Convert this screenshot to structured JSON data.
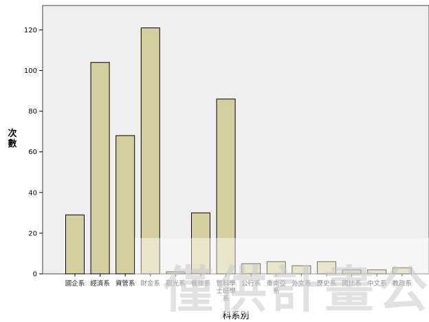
{
  "chart_data": {
    "type": "bar",
    "categories": [
      "國企系",
      "經濟系",
      "資管系",
      "財金系",
      "觀光系",
      "餐旅系",
      "管科學士班學系",
      "公行系",
      "東南亞系",
      "外文系",
      "歷史系",
      "國比系",
      "中文系",
      "教政系"
    ],
    "category_lines": [
      [
        "國企系"
      ],
      [
        "經濟系"
      ],
      [
        "資管系"
      ],
      [
        "財金系"
      ],
      [
        "觀光系"
      ],
      [
        "餐旅系"
      ],
      [
        "管科學",
        "士班學",
        "系"
      ],
      [
        "公行系"
      ],
      [
        "東南亞",
        "系"
      ],
      [
        "外文系"
      ],
      [
        "歷史系"
      ],
      [
        "國比系"
      ],
      [
        "中文系"
      ],
      [
        "教政系"
      ]
    ],
    "values": [
      29,
      104,
      68,
      121,
      1,
      30,
      86,
      5,
      6,
      4,
      6,
      2,
      2,
      3
    ],
    "ylabel": "次數",
    "xlabel": "科系別",
    "ylim": [
      0,
      132
    ],
    "yticks": [
      0,
      20,
      40,
      60,
      80,
      100,
      120
    ],
    "grid": false,
    "colors": {
      "bar_fill": "#d5cf9f",
      "bar_stroke": "#000000",
      "plot_bg": "#efefef",
      "plot_border": "#444444"
    }
  },
  "watermark": {
    "text": "僅供計畫公"
  }
}
